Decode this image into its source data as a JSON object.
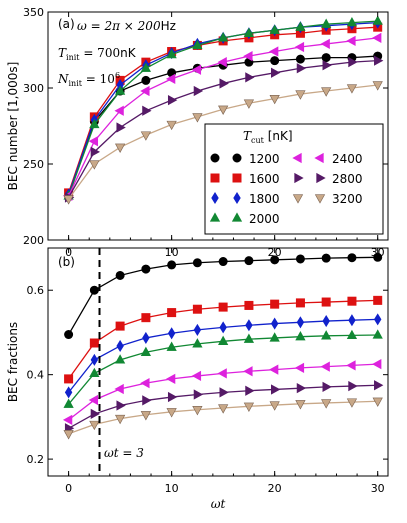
{
  "colors": {
    "1200": "#000000",
    "1600": "#dd1111",
    "1800": "#1122cc",
    "2000": "#118833",
    "2400": "#dd22dd",
    "2800": "#551a66",
    "3200": "#c8a888"
  },
  "chart_data": [
    {
      "type": "line",
      "panel_label": "(a)",
      "ylabel": "BEC number [1,000s]",
      "ylim": [
        200,
        350
      ],
      "yticks": [
        200,
        250,
        300,
        350
      ],
      "xlim": [
        -2,
        31
      ],
      "xticks": [
        0,
        10,
        20,
        30
      ],
      "annotations": [
        "ω = 2π × 200Hz",
        "T_init = 700nK",
        "N_init = 10^6"
      ],
      "annotation_parts": [
        [
          "ω = 2π × 200",
          "Hz"
        ],
        [
          "T",
          "init",
          " = 700",
          "nK"
        ],
        [
          "N",
          "init",
          " = 10",
          "6"
        ]
      ],
      "legend": {
        "title_sym": "T",
        "title_sub": "cut",
        "title_unit": "[nK]",
        "placement": "lower-right",
        "ncol": 2,
        "labels": [
          "1200",
          "1600",
          "1800",
          "2000",
          "2400",
          "2800",
          "3200"
        ]
      },
      "x": [
        0,
        2.5,
        5,
        7.5,
        10,
        12.5,
        15,
        17.5,
        20,
        22.5,
        25,
        27.5,
        30
      ],
      "series": [
        {
          "name": "1200",
          "marker": "circle",
          "values": [
            229,
            278,
            298,
            305,
            310,
            313,
            315,
            317,
            318,
            319,
            320,
            320,
            321
          ]
        },
        {
          "name": "1600",
          "marker": "square",
          "values": [
            231,
            281,
            305,
            317,
            324,
            328,
            331,
            333,
            335,
            336,
            338,
            339,
            340
          ]
        },
        {
          "name": "1800",
          "marker": "diamond",
          "values": [
            230,
            279,
            302,
            315,
            323,
            329,
            333,
            336,
            338,
            340,
            341,
            342,
            343
          ]
        },
        {
          "name": "2000",
          "marker": "triangle-up",
          "values": [
            229,
            276,
            298,
            313,
            322,
            328,
            333,
            336,
            338,
            340,
            342,
            343,
            344
          ]
        },
        {
          "name": "2400",
          "marker": "triangle-left",
          "values": [
            229,
            265,
            285,
            298,
            306,
            312,
            317,
            321,
            324,
            327,
            329,
            331,
            333
          ]
        },
        {
          "name": "2800",
          "marker": "triangle-right",
          "values": [
            228,
            258,
            274,
            285,
            292,
            298,
            303,
            307,
            310,
            313,
            315,
            317,
            318
          ]
        },
        {
          "name": "3200",
          "marker": "triangle-down",
          "values": [
            227,
            250,
            261,
            269,
            276,
            281,
            286,
            290,
            293,
            296,
            298,
            300,
            302
          ]
        }
      ]
    },
    {
      "type": "line",
      "panel_label": "(b)",
      "ylabel": "BEC fractions",
      "xlabel": "ωt",
      "ylim": [
        0.16,
        0.7
      ],
      "yticks": [
        0.2,
        0.4,
        0.6
      ],
      "xlim": [
        -2,
        31
      ],
      "xticks": [
        0,
        10,
        20,
        30
      ],
      "vline": {
        "x": 3,
        "label": "ωt = 3"
      },
      "x": [
        0,
        2.5,
        5,
        7.5,
        10,
        12.5,
        15,
        17.5,
        20,
        22.5,
        25,
        27.5,
        30
      ],
      "series": [
        {
          "name": "1200",
          "marker": "circle",
          "values": [
            0.495,
            0.6,
            0.635,
            0.65,
            0.66,
            0.665,
            0.668,
            0.67,
            0.672,
            0.674,
            0.676,
            0.677,
            0.678
          ]
        },
        {
          "name": "1600",
          "marker": "square",
          "values": [
            0.39,
            0.475,
            0.515,
            0.535,
            0.547,
            0.555,
            0.56,
            0.564,
            0.567,
            0.57,
            0.572,
            0.574,
            0.576
          ]
        },
        {
          "name": "1800",
          "marker": "diamond",
          "values": [
            0.358,
            0.435,
            0.468,
            0.487,
            0.498,
            0.506,
            0.512,
            0.517,
            0.521,
            0.524,
            0.527,
            0.529,
            0.531
          ]
        },
        {
          "name": "2000",
          "marker": "triangle-up",
          "values": [
            0.33,
            0.403,
            0.435,
            0.453,
            0.465,
            0.473,
            0.479,
            0.484,
            0.487,
            0.49,
            0.492,
            0.493,
            0.494
          ]
        },
        {
          "name": "2400",
          "marker": "triangle-left",
          "values": [
            0.293,
            0.34,
            0.366,
            0.38,
            0.39,
            0.397,
            0.403,
            0.408,
            0.412,
            0.416,
            0.419,
            0.422,
            0.425
          ]
        },
        {
          "name": "2800",
          "marker": "triangle-right",
          "values": [
            0.273,
            0.307,
            0.327,
            0.339,
            0.347,
            0.353,
            0.358,
            0.362,
            0.365,
            0.368,
            0.371,
            0.373,
            0.375
          ]
        },
        {
          "name": "3200",
          "marker": "triangle-down",
          "values": [
            0.26,
            0.282,
            0.296,
            0.305,
            0.312,
            0.317,
            0.321,
            0.325,
            0.328,
            0.331,
            0.333,
            0.335,
            0.337
          ]
        }
      ]
    }
  ]
}
